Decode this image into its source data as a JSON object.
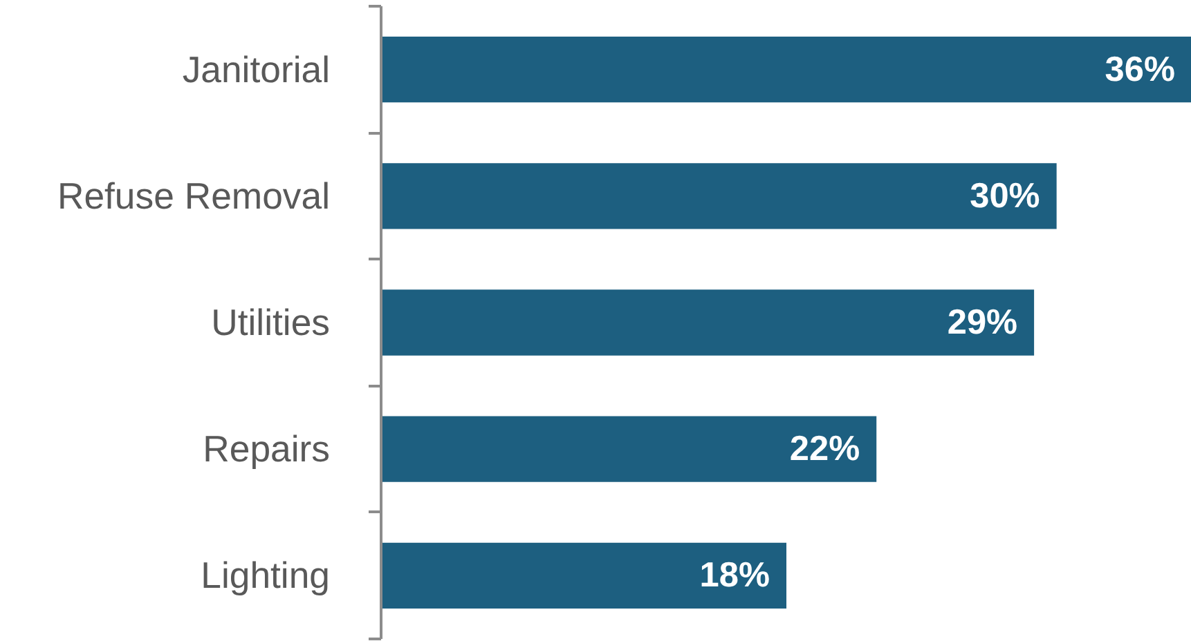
{
  "chart_data": {
    "type": "bar",
    "orientation": "horizontal",
    "categories": [
      "Janitorial",
      "Refuse Removal",
      "Utilities",
      "Repairs",
      "Lighting"
    ],
    "values": [
      36,
      30,
      29,
      22,
      18
    ],
    "value_labels": [
      "36%",
      "30%",
      "29%",
      "22%",
      "18%"
    ],
    "color": "#1d5f80",
    "tick_labels": "y"
  }
}
